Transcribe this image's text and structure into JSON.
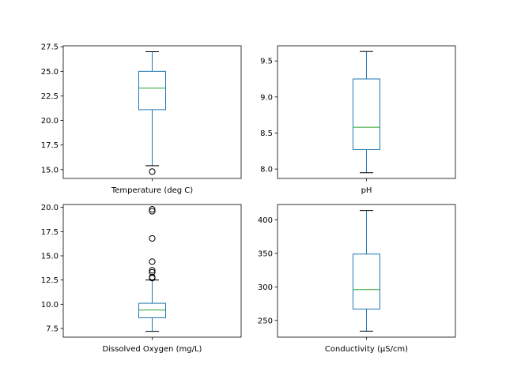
{
  "colors": {
    "box": "#1f77b4",
    "median": "#2ca02c",
    "flier": "#000000",
    "spine": "#000000",
    "background": "#ffffff"
  },
  "chart_data": [
    {
      "type": "box",
      "category": "Temperature (deg C)",
      "stats": {
        "whisker_low": 15.4,
        "q1": 21.1,
        "median": 23.3,
        "q3": 25.0,
        "whisker_high": 27.0
      },
      "fliers": [
        14.8
      ],
      "ylim": [
        14.1,
        27.6
      ],
      "yticks": [
        15.0,
        17.5,
        20.0,
        22.5,
        25.0,
        27.5
      ],
      "ytick_labels": [
        "15.0",
        "17.5",
        "20.0",
        "22.5",
        "25.0",
        "27.5"
      ]
    },
    {
      "type": "box",
      "category": "pH",
      "stats": {
        "whisker_low": 7.95,
        "q1": 8.27,
        "median": 8.58,
        "q3": 9.25,
        "whisker_high": 9.63
      },
      "fliers": [],
      "ylim": [
        7.87,
        9.71
      ],
      "yticks": [
        8.0,
        8.5,
        9.0,
        9.5
      ],
      "ytick_labels": [
        "8.0",
        "8.5",
        "9.0",
        "9.5"
      ]
    },
    {
      "type": "box",
      "category": "Dissolved Oxygen (mg/L)",
      "stats": {
        "whisker_low": 7.2,
        "q1": 8.6,
        "median": 9.4,
        "q3": 10.1,
        "whisker_high": 12.5
      },
      "fliers": [
        12.7,
        12.8,
        13.3,
        13.5,
        14.4,
        16.8,
        19.6,
        19.8
      ],
      "ylim": [
        6.6,
        20.3
      ],
      "yticks": [
        7.5,
        10.0,
        12.5,
        15.0,
        17.5,
        20.0
      ],
      "ytick_labels": [
        "7.5",
        "10.0",
        "12.5",
        "15.0",
        "17.5",
        "20.0"
      ]
    },
    {
      "type": "box",
      "category": "Conductivity (µS/cm)",
      "stats": {
        "whisker_low": 234,
        "q1": 267,
        "median": 296,
        "q3": 349,
        "whisker_high": 414
      },
      "fliers": [],
      "ylim": [
        225,
        423
      ],
      "yticks": [
        250,
        300,
        350,
        400
      ],
      "ytick_labels": [
        "250",
        "300",
        "350",
        "400"
      ]
    }
  ]
}
